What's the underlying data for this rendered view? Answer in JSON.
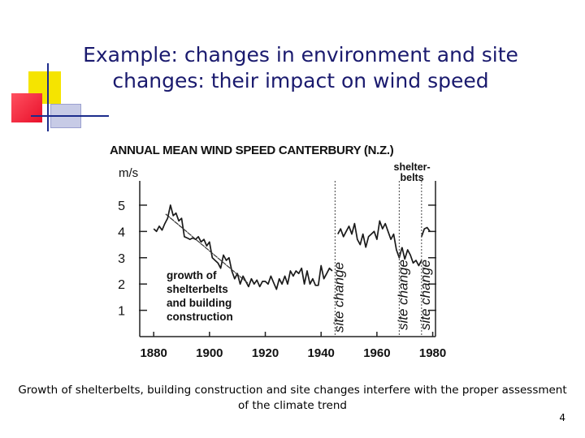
{
  "slide": {
    "title": "Example: changes in environment and site changes: their impact on wind speed",
    "caption": "Growth of shelterbelts, building construction and site changes interfere with the proper assessment of the climate trend",
    "page_number": "4"
  },
  "colors": {
    "title": "#1a1a6e",
    "yellow": "#f5e400",
    "red": "#e8102a",
    "blue": "#1c2c8c"
  },
  "chart_data": {
    "type": "line",
    "title": "ANNUAL MEAN WIND SPEED CANTERBURY (N.Z.)",
    "ylabel": "m/s",
    "xlabel": "",
    "xlim": [
      1875,
      1981
    ],
    "ylim": [
      0,
      5.8
    ],
    "xticks": [
      1880,
      1900,
      1920,
      1940,
      1960,
      1980
    ],
    "yticks": [
      1,
      2,
      3,
      4,
      5
    ],
    "series": [
      {
        "x": [
          1880,
          1881,
          1882,
          1883,
          1884,
          1885,
          1886,
          1887,
          1888,
          1889,
          1890,
          1891,
          1892,
          1893,
          1894,
          1895,
          1896,
          1897,
          1898,
          1899,
          1900,
          1901,
          1902,
          1903,
          1904,
          1905,
          1906,
          1907,
          1908,
          1909,
          1910,
          1911,
          1912,
          1913,
          1914,
          1915,
          1916,
          1917,
          1918,
          1919,
          1920,
          1921,
          1922,
          1923,
          1924,
          1925,
          1926,
          1927,
          1928,
          1929,
          1930,
          1931,
          1932,
          1933,
          1934,
          1935,
          1936,
          1937,
          1938,
          1939,
          1940,
          1941,
          1942,
          1943,
          1944
        ],
        "values": [
          4.1,
          4.0,
          4.2,
          4.05,
          4.3,
          4.5,
          5.0,
          4.6,
          4.7,
          4.4,
          4.5,
          3.8,
          3.75,
          3.7,
          3.75,
          3.7,
          3.8,
          3.6,
          3.7,
          3.45,
          3.6,
          3.0,
          2.9,
          2.8,
          2.6,
          3.1,
          2.9,
          3.0,
          2.5,
          2.2,
          2.4,
          2.0,
          2.3,
          2.1,
          1.9,
          2.2,
          2.0,
          2.15,
          1.9,
          2.1,
          2.1,
          2.0,
          2.3,
          2.05,
          1.8,
          2.2,
          2.0,
          2.3,
          2.0,
          2.5,
          2.3,
          2.5,
          2.4,
          2.6,
          2.0,
          2.5,
          2.0,
          2.2,
          1.95,
          1.95,
          2.7,
          2.2,
          2.4,
          2.6,
          2.5
        ]
      },
      {
        "x": [
          1946,
          1947,
          1948,
          1949,
          1950,
          1951,
          1952,
          1953,
          1954,
          1955,
          1956,
          1957,
          1958,
          1959,
          1960,
          1961,
          1962,
          1963,
          1964,
          1965,
          1966,
          1967,
          1968,
          1969
        ],
        "values": [
          3.9,
          4.1,
          3.8,
          4.0,
          4.2,
          3.9,
          4.3,
          3.7,
          3.5,
          3.9,
          3.4,
          3.8,
          3.9,
          4.0,
          3.7,
          4.4,
          4.1,
          4.3,
          4.0,
          3.7,
          3.9,
          3.3,
          3.0,
          3.4
        ]
      },
      {
        "x": [
          1969,
          1970,
          1971,
          1972,
          1973,
          1974,
          1975,
          1976
        ],
        "values": [
          3.4,
          2.95,
          3.3,
          3.1,
          2.8,
          2.9,
          2.7,
          2.9
        ]
      },
      {
        "x": [
          1976,
          1977,
          1978,
          1979
        ],
        "values": [
          3.8,
          4.1,
          4.15,
          4.0
        ]
      }
    ],
    "trend_markers": {
      "x1": 1885,
      "y1": 4.6,
      "x2": 1913,
      "y2": 2.1
    },
    "site_change_lines": [
      1945,
      1968,
      1976
    ],
    "annotations": {
      "growth_lines": [
        "growth of",
        "shelterbelts",
        "and building",
        "construction"
      ],
      "site_change": "site change",
      "shelterbelts_lines": [
        "shelter-",
        "belts"
      ]
    }
  }
}
